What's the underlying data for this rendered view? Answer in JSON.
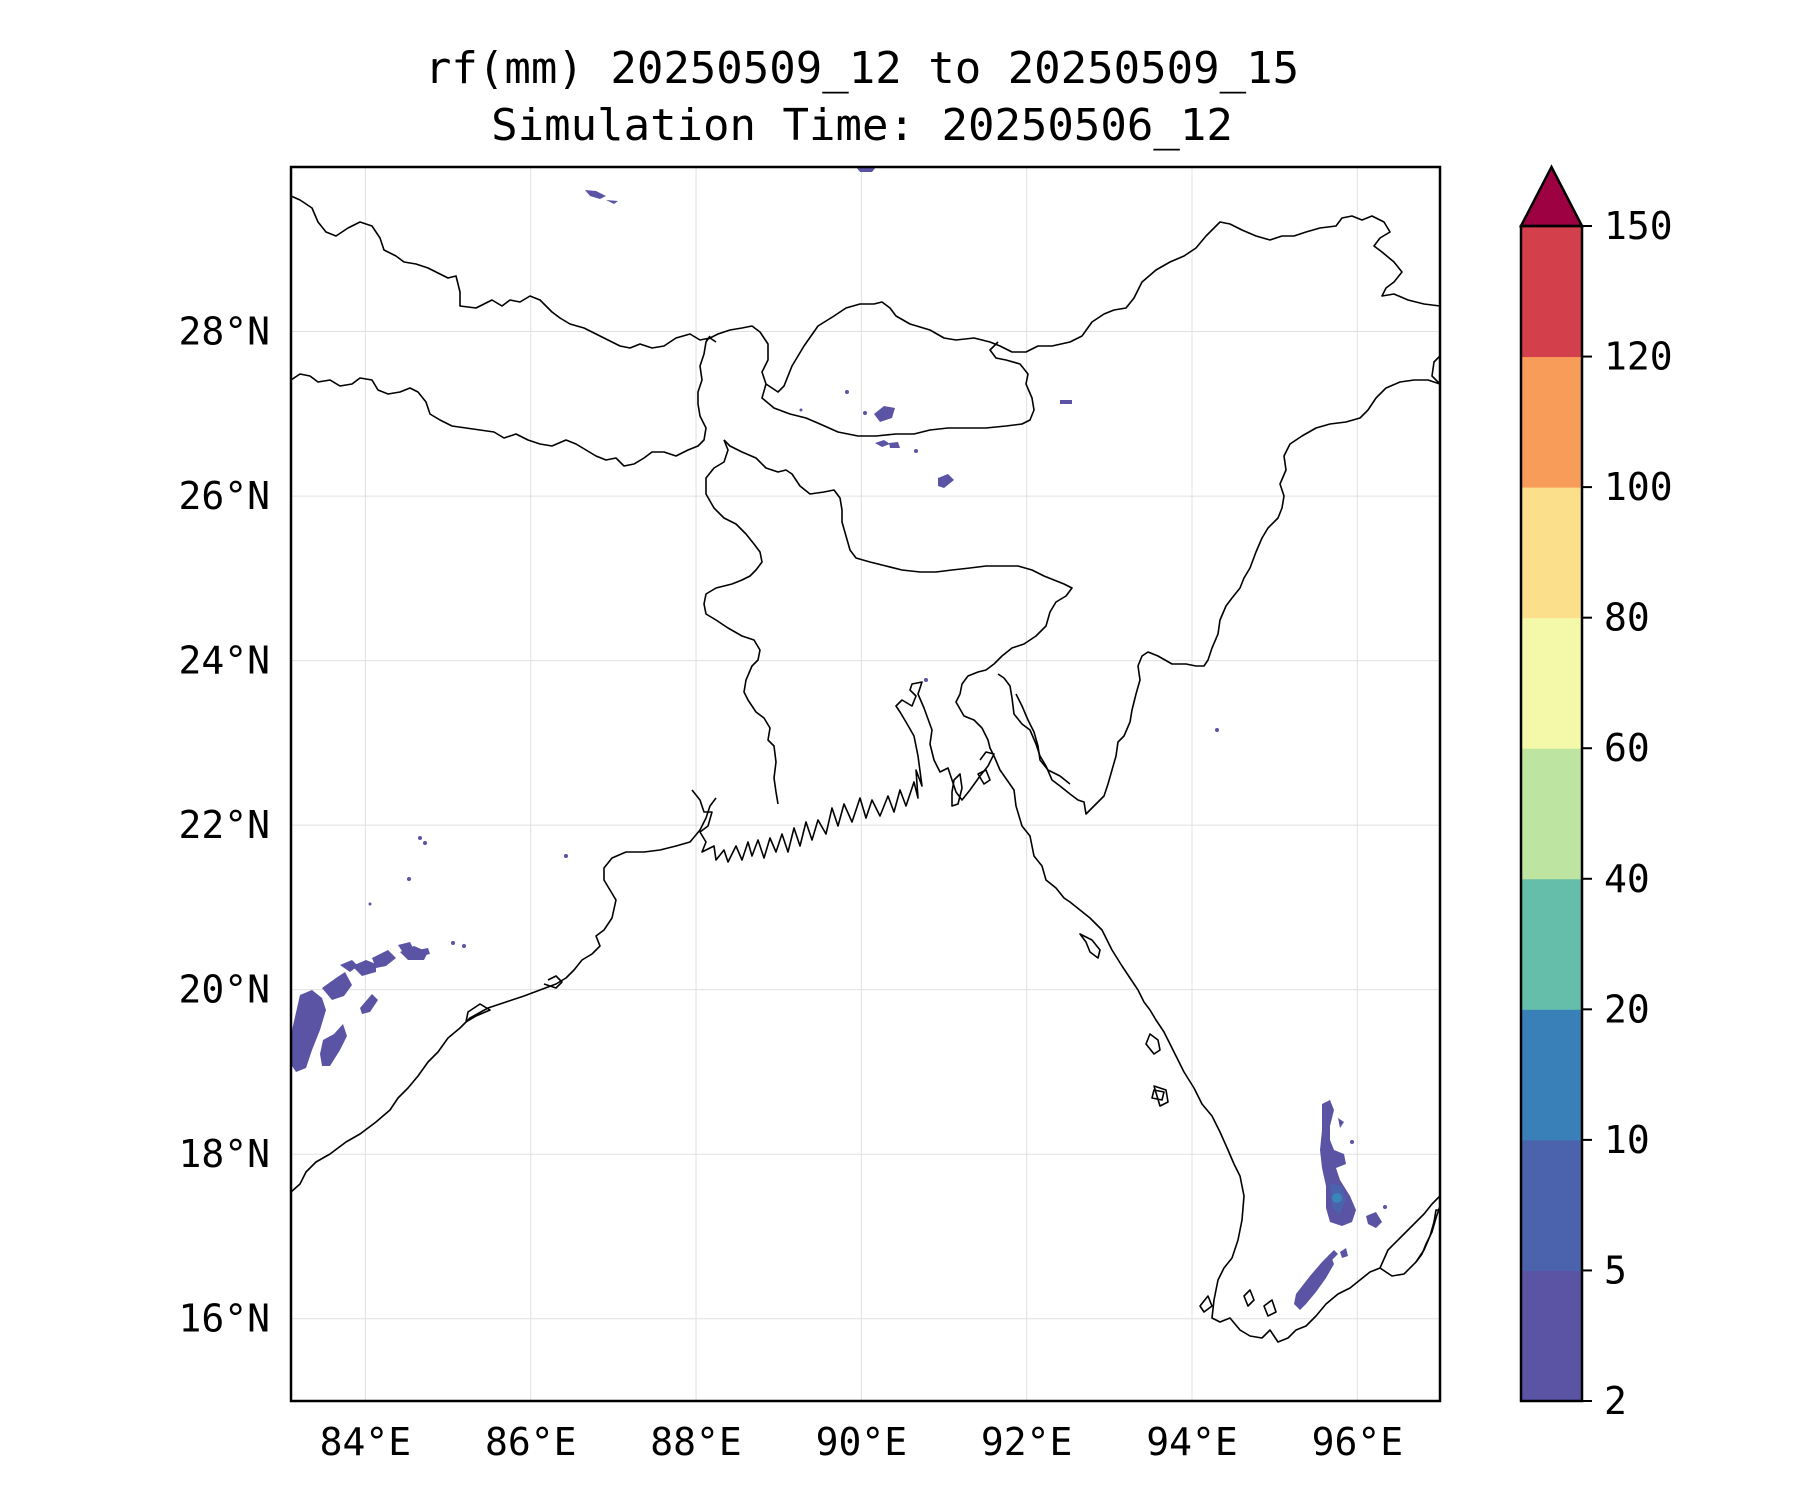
{
  "figure": {
    "title_line1": "rf(mm) 20250509_12 to 20250509_15",
    "title_line2": "Simulation Time: 20250506_12"
  },
  "map": {
    "lon_range": [
      83.1,
      97.0
    ],
    "lat_range": [
      15.0,
      30.0
    ],
    "x_ticks": [
      {
        "value": 84,
        "label": "84°E"
      },
      {
        "value": 86,
        "label": "86°E"
      },
      {
        "value": 88,
        "label": "88°E"
      },
      {
        "value": 90,
        "label": "90°E"
      },
      {
        "value": 92,
        "label": "92°E"
      },
      {
        "value": 94,
        "label": "94°E"
      },
      {
        "value": 96,
        "label": "96°E"
      }
    ],
    "y_ticks": [
      {
        "value": 16,
        "label": "16°N"
      },
      {
        "value": 18,
        "label": "18°N"
      },
      {
        "value": 20,
        "label": "20°N"
      },
      {
        "value": 22,
        "label": "22°N"
      },
      {
        "value": 24,
        "label": "24°N"
      },
      {
        "value": 26,
        "label": "26°N"
      },
      {
        "value": 28,
        "label": "28°N"
      }
    ],
    "gridlines": true,
    "coastline_color": "#000000",
    "rain_patch_color": "#5b53a4",
    "rain_patch_color_strong": "#4b63ad",
    "rain_core_color": "#3a86b8"
  },
  "colorbar": {
    "levels": [
      {
        "label": "2",
        "color": "#5b53a4"
      },
      {
        "label": "5",
        "color": "#4b63ad"
      },
      {
        "label": "10",
        "color": "#3a80b8"
      },
      {
        "label": "20",
        "color": "#64bea9"
      },
      {
        "label": "40",
        "color": "#bde4a0"
      },
      {
        "label": "60",
        "color": "#f3f9a9"
      },
      {
        "label": "80",
        "color": "#fbdf8b"
      },
      {
        "label": "100",
        "color": "#f89c5a"
      },
      {
        "label": "120",
        "color": "#d3404c"
      },
      {
        "label": "150",
        "color": ""
      }
    ],
    "extend_color": "#9e0142"
  }
}
